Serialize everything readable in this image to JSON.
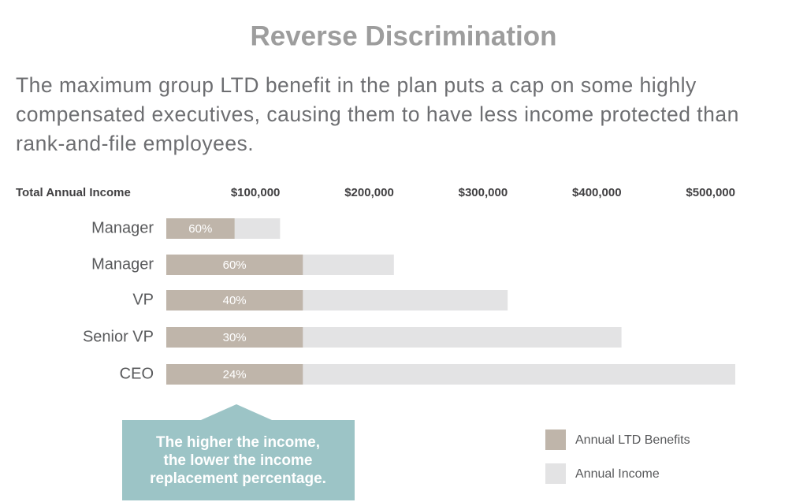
{
  "chart_data": {
    "type": "bar",
    "orientation": "horizontal",
    "title": "Reverse Discrimination",
    "subtitle": "The maximum group LTD benefit in the plan puts a cap on some highly compensated executives, causing them to have less income protected than rank-and-file employees.",
    "x_label": "Total Annual Income",
    "categories": [
      "Manager",
      "Manager",
      "VP",
      "Senior VP",
      "CEO"
    ],
    "series": [
      {
        "name": "Annual Income",
        "color": "#e3e3e4",
        "values": [
          100000,
          200000,
          300000,
          400000,
          500000
        ]
      },
      {
        "name": "Annual LTD Benefits",
        "color": "#bfb5aa",
        "values": [
          60000,
          120000,
          120000,
          120000,
          120000
        ],
        "value_labels": [
          "60%",
          "60%",
          "40%",
          "30%",
          "24%"
        ]
      }
    ],
    "xlim": [
      0,
      500000
    ],
    "xticks": [
      {
        "value": 100000,
        "label": "$100,000"
      },
      {
        "value": 200000,
        "label": "$200,000"
      },
      {
        "value": 300000,
        "label": "$300,000"
      },
      {
        "value": 400000,
        "label": "$400,000"
      },
      {
        "value": 500000,
        "label": "$500,000"
      }
    ],
    "grid": false,
    "legend_order": [
      1,
      0
    ],
    "legend": "bottom-right",
    "annotation": [
      "The higher the income,",
      "the lower the income",
      "replacement percentage."
    ]
  }
}
